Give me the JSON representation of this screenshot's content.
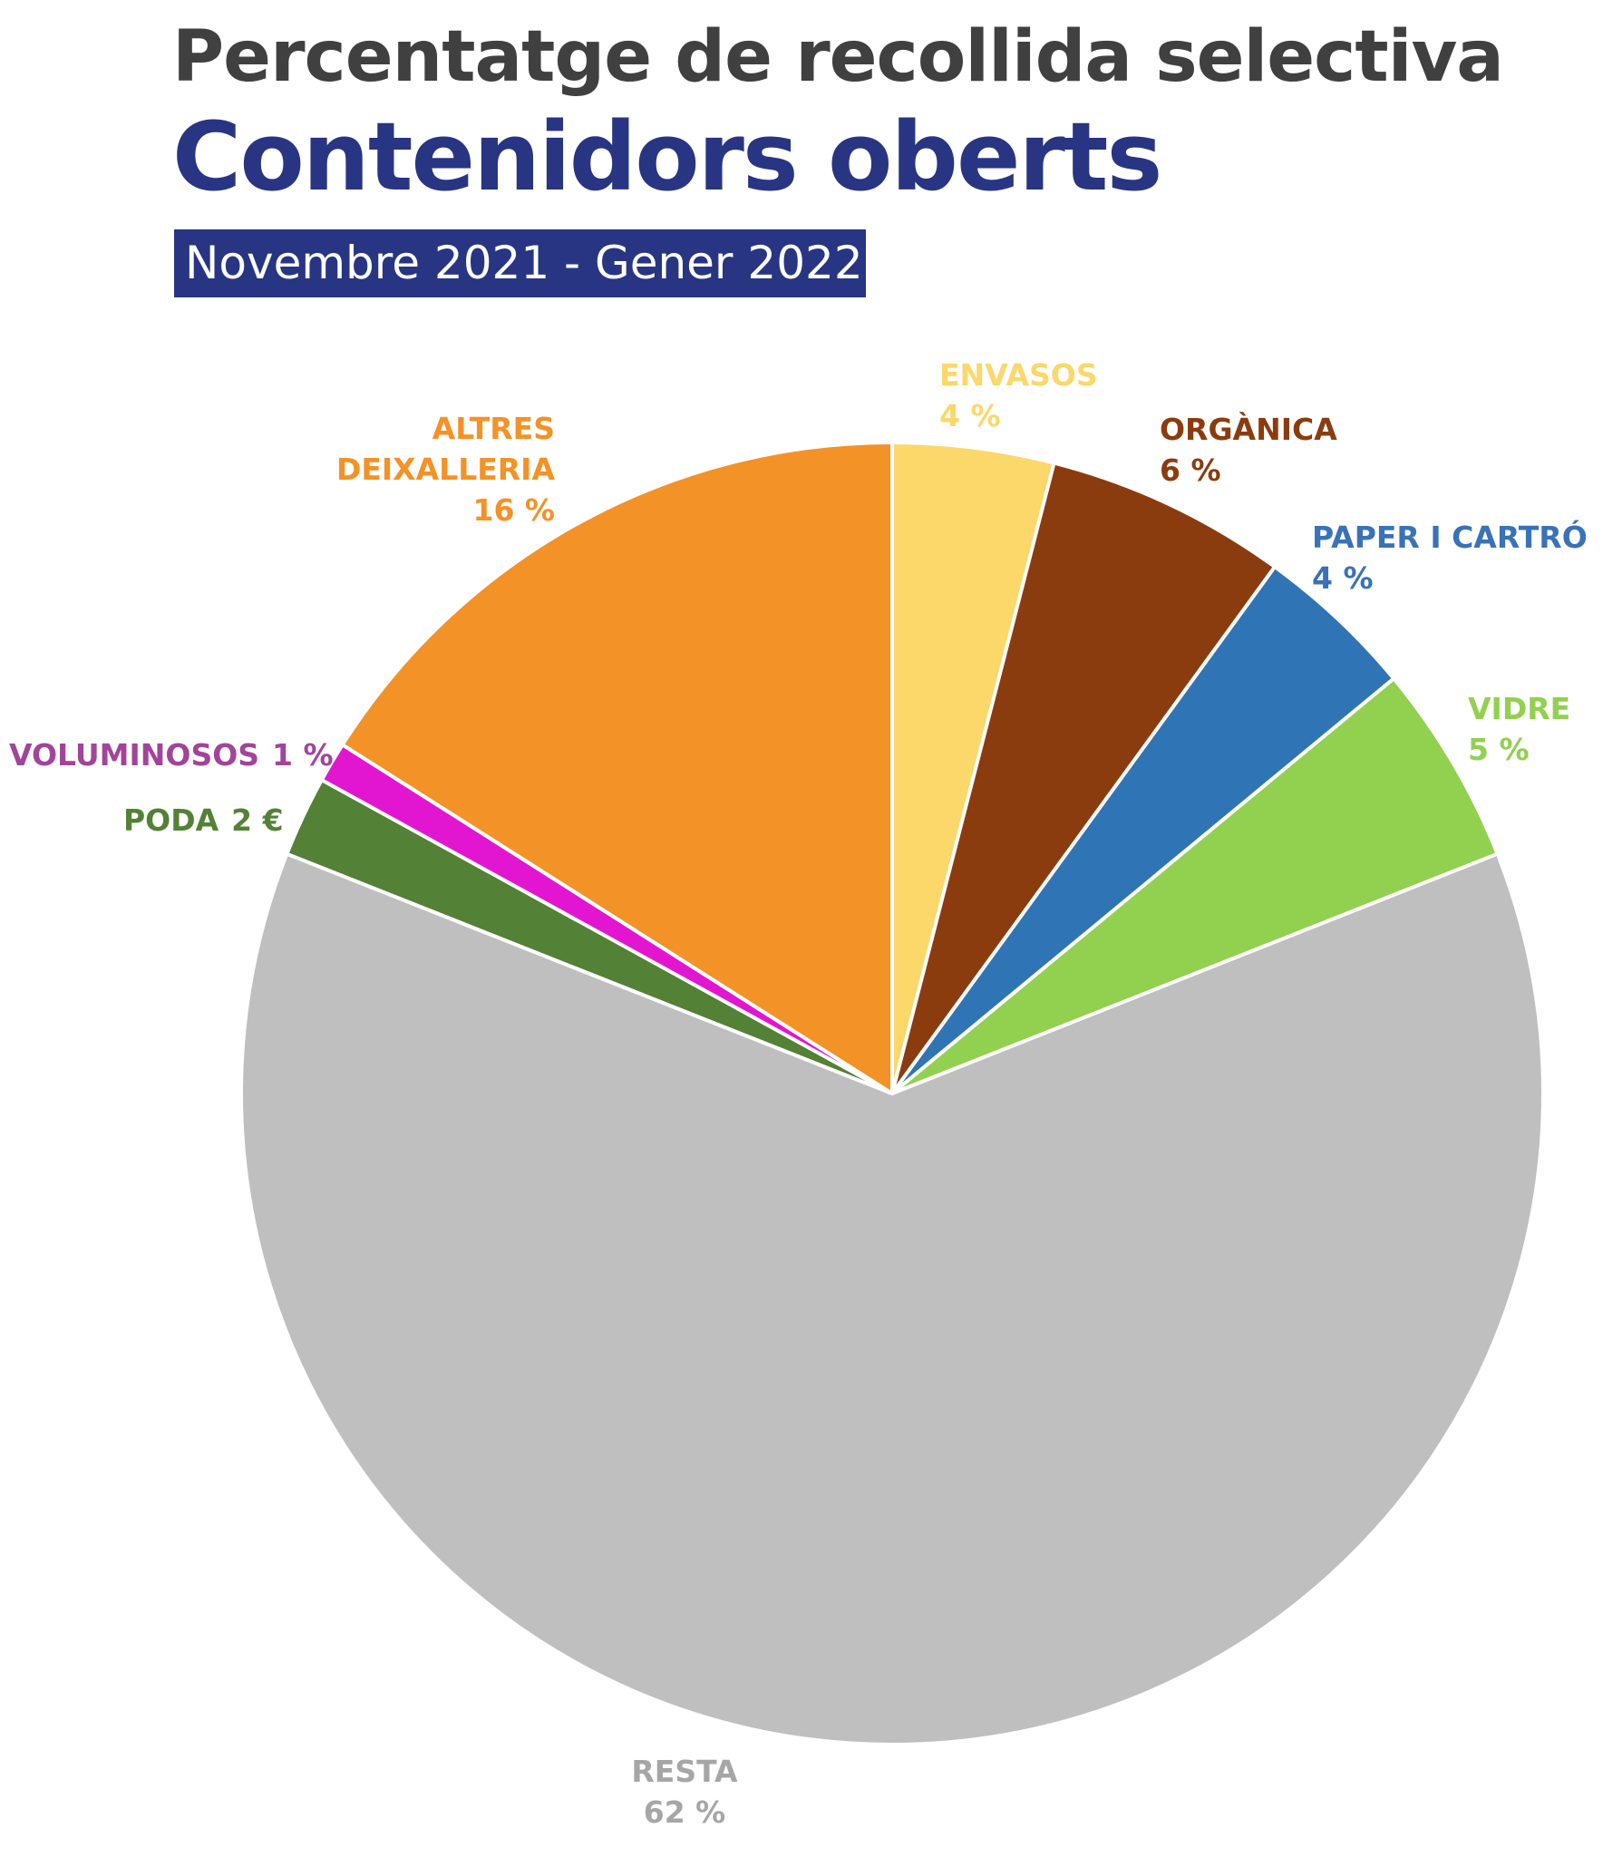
{
  "chart_data": {
    "type": "pie",
    "title": "Percentatge de recollida selectiva",
    "subtitle": "Contenidors oberts",
    "date_range": "Novembre 2021 - Gener 2022",
    "categories": [
      "ENVASOS",
      "ORGÀNICA",
      "PAPER I CARTRÓ",
      "VIDRE",
      "RESTA",
      "PODA",
      "VOLUMINOSOS",
      "ALTRES DEIXALLERIA"
    ],
    "values": [
      4,
      6,
      4,
      5,
      62,
      2,
      1,
      16
    ],
    "value_labels": [
      "4 %",
      "6 %",
      "4 %",
      "5 %",
      "62 %",
      "2 €",
      "1 %",
      "16 %"
    ],
    "colors": [
      "#fcd76a",
      "#8b3c0e",
      "#2f74b5",
      "#92d050",
      "#bfbfbf",
      "#538135",
      "#e216d0",
      "#f39226"
    ],
    "label_colors": [
      "#fcd76a",
      "#8b3c0e",
      "#3a72b8",
      "#92d050",
      "#a6a6a6",
      "#538135",
      "#a2449a",
      "#f39226"
    ]
  }
}
